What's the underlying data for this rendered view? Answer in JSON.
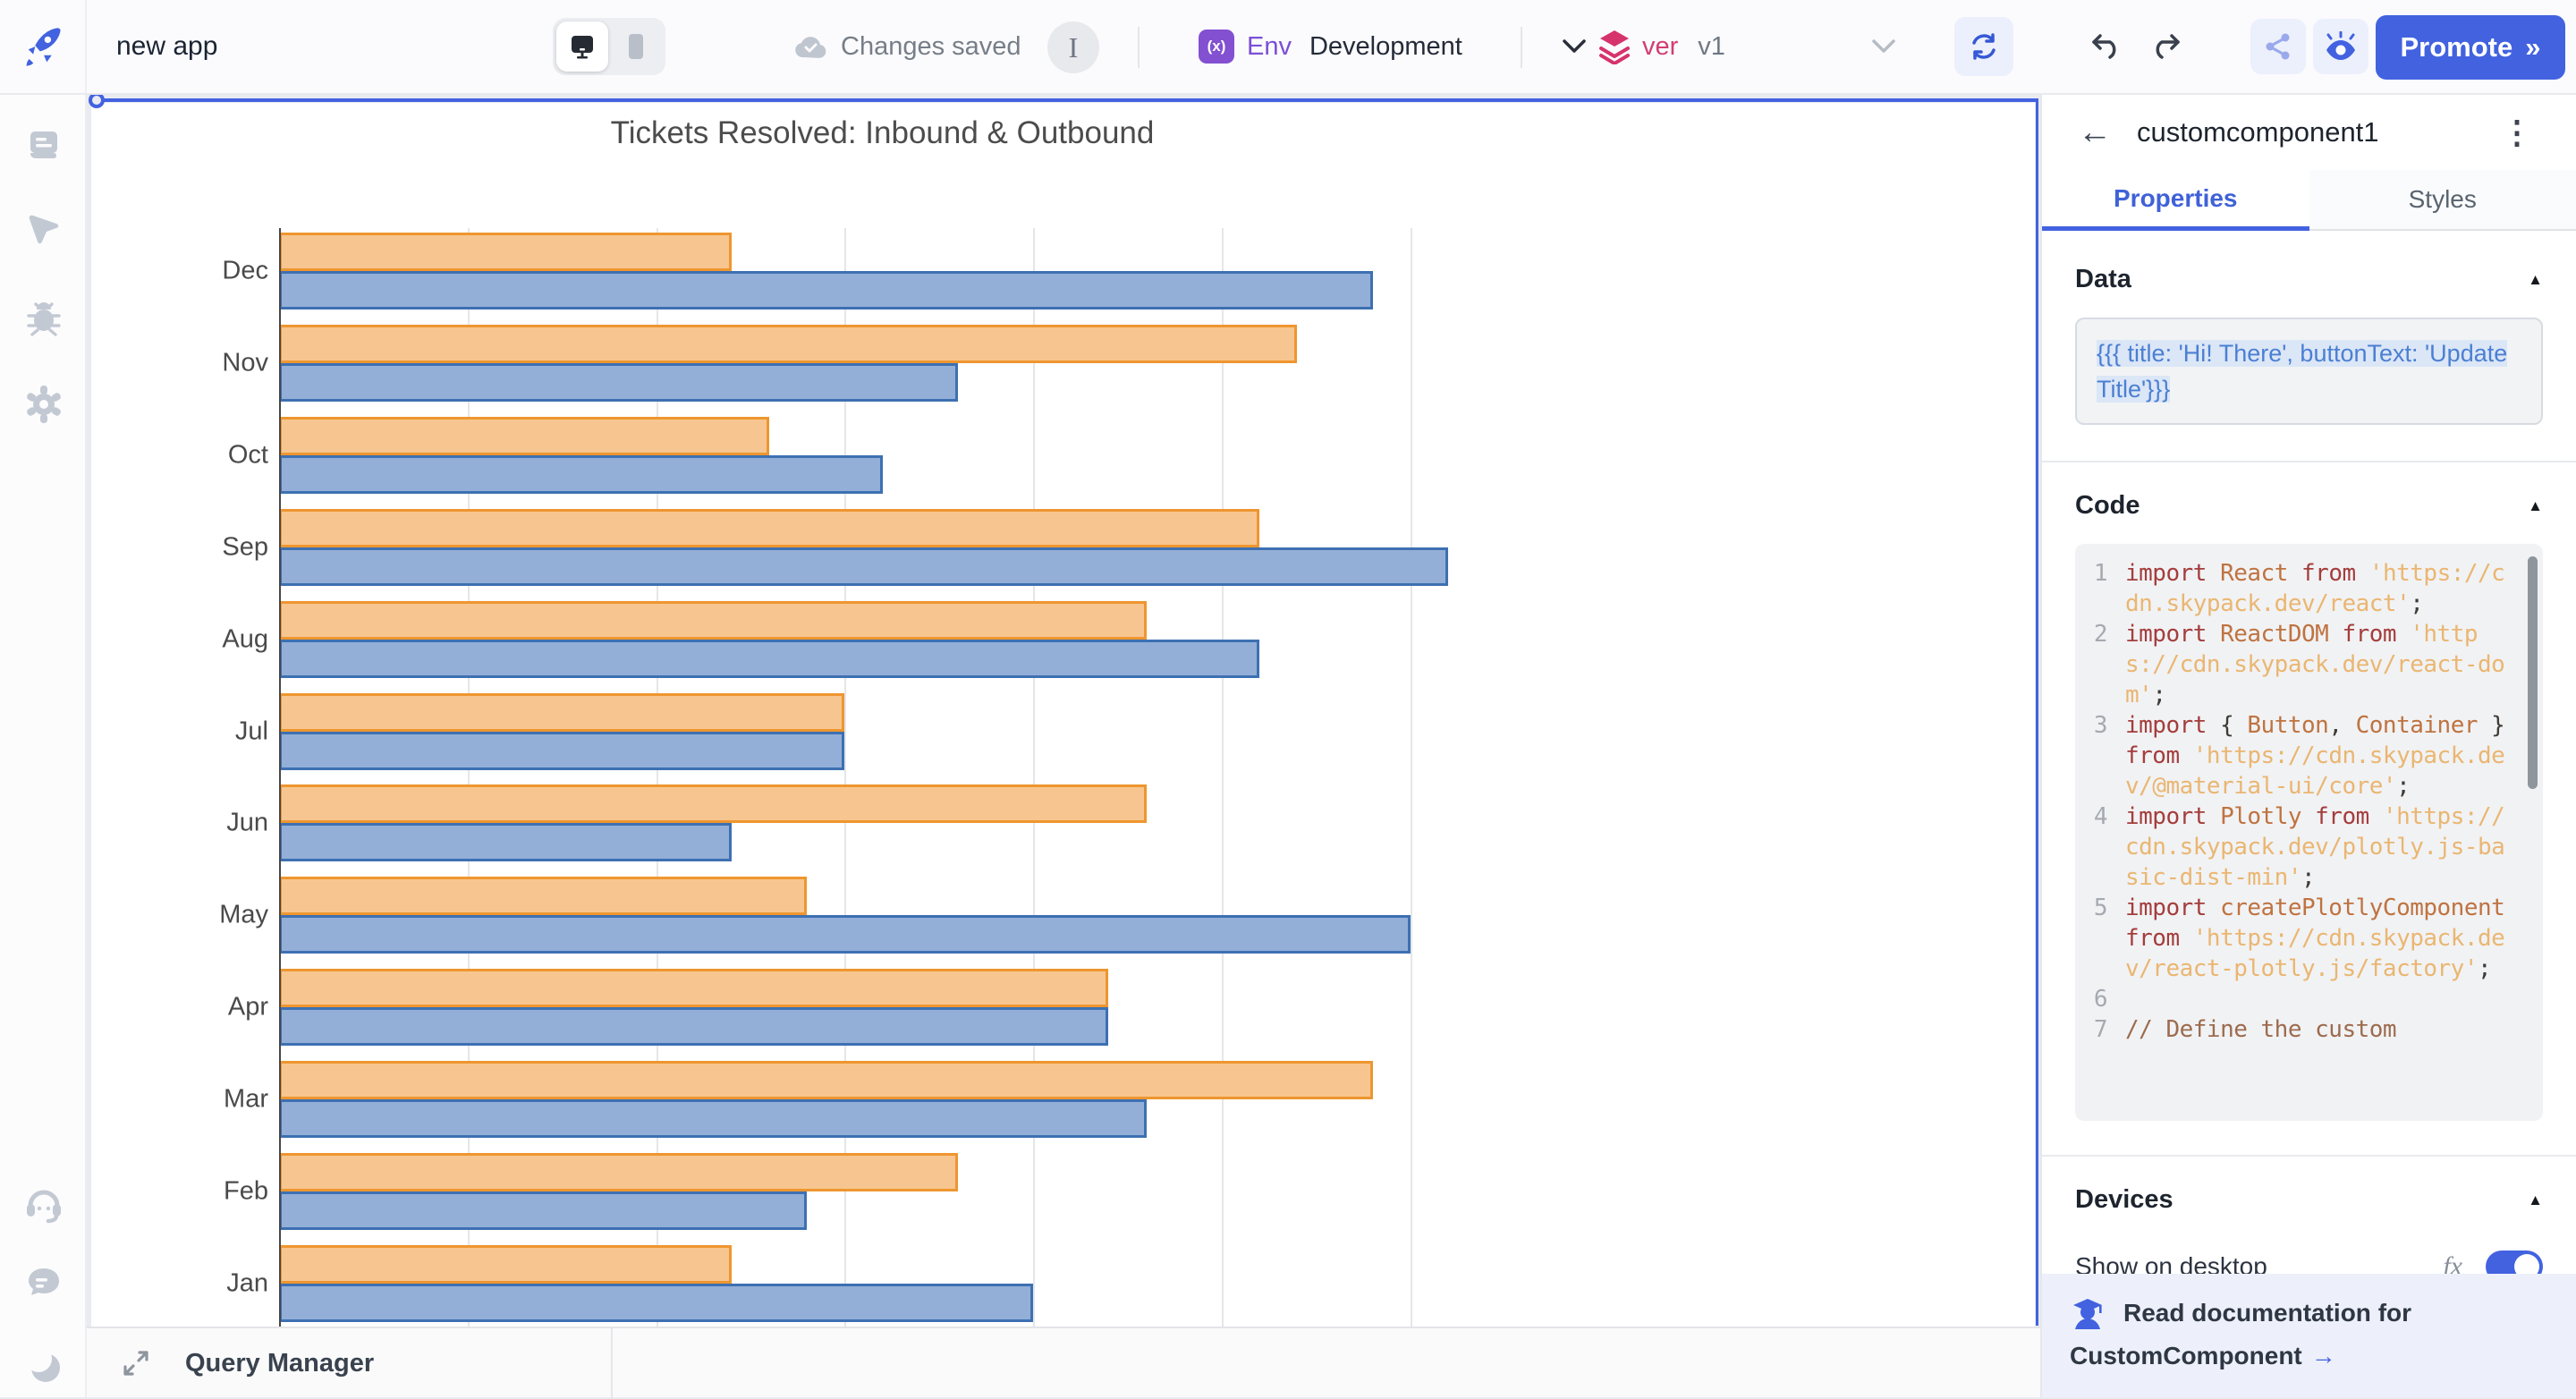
{
  "topbar": {
    "app_title": "new app",
    "changes_saved": "Changes saved",
    "instance_badge": "I",
    "env_badge": "(x)",
    "env_label": "Env",
    "env_value": "Development",
    "ver_label": "ver",
    "ver_value": "v1",
    "promote_label": "Promote",
    "promote_chevrons": "»"
  },
  "sidebar": {
    "icons": [
      "script",
      "navigator",
      "debug",
      "settings",
      "support",
      "chat",
      "dark-mode"
    ]
  },
  "chart_data": {
    "type": "bar",
    "orientation": "horizontal",
    "title": "Tickets Resolved: Inbound & Outbound",
    "categories": [
      "Dec",
      "Nov",
      "Oct",
      "Sep",
      "Aug",
      "Jul",
      "Jun",
      "May",
      "Apr",
      "Mar",
      "Feb",
      "Jan"
    ],
    "series": [
      {
        "name": "orange",
        "color": "#f7c690",
        "border": "#ee962f",
        "values": [
          48,
          108,
          52,
          104,
          92,
          60,
          92,
          56,
          88,
          116,
          72,
          48
        ]
      },
      {
        "name": "blue",
        "color": "#93afd7",
        "border": "#3d70b2",
        "values": [
          116,
          72,
          64,
          124,
          104,
          60,
          48,
          120,
          88,
          92,
          56,
          80
        ]
      }
    ],
    "xlim": [
      0,
      128
    ],
    "grid_step": 20,
    "grid": true,
    "legend_position": "none",
    "xlabel": "",
    "ylabel": ""
  },
  "bottom_bar": {
    "label": "Query Manager"
  },
  "panel": {
    "component_name": "customcomponent1",
    "tabs": [
      {
        "label": "Properties",
        "active": true
      },
      {
        "label": "Styles",
        "active": false
      }
    ],
    "data_section": {
      "title": "Data",
      "model": "{{{ title: 'Hi! There', buttonText: 'Update Title'}}}"
    },
    "code_section": {
      "title": "Code",
      "lines": [
        {
          "n": "1",
          "tokens": [
            {
              "t": "k",
              "s": "import"
            },
            {
              "t": "p",
              "s": " "
            },
            {
              "t": "i",
              "s": "React"
            },
            {
              "t": "p",
              "s": " "
            },
            {
              "t": "k",
              "s": "from"
            },
            {
              "t": "p",
              "s": " "
            },
            {
              "t": "s",
              "s": "'https://cdn.skypack.dev/react'"
            },
            {
              "t": "p",
              "s": ";"
            }
          ]
        },
        {
          "n": "2",
          "tokens": [
            {
              "t": "k",
              "s": "import"
            },
            {
              "t": "p",
              "s": " "
            },
            {
              "t": "i",
              "s": "ReactDOM"
            },
            {
              "t": "p",
              "s": " "
            },
            {
              "t": "k",
              "s": "from"
            },
            {
              "t": "p",
              "s": " "
            },
            {
              "t": "s",
              "s": "'https://cdn.skypack.dev/react-dom'"
            },
            {
              "t": "p",
              "s": ";"
            }
          ]
        },
        {
          "n": "3",
          "tokens": [
            {
              "t": "k",
              "s": "import"
            },
            {
              "t": "p",
              "s": " { "
            },
            {
              "t": "i",
              "s": "Button"
            },
            {
              "t": "p",
              "s": ", "
            },
            {
              "t": "i",
              "s": "Container"
            },
            {
              "t": "p",
              "s": " } "
            },
            {
              "t": "k",
              "s": "from"
            },
            {
              "t": "p",
              "s": " "
            },
            {
              "t": "s",
              "s": "'https://cdn.skypack.dev/@material-ui/core'"
            },
            {
              "t": "p",
              "s": ";"
            }
          ]
        },
        {
          "n": "4",
          "tokens": [
            {
              "t": "k",
              "s": "import"
            },
            {
              "t": "p",
              "s": " "
            },
            {
              "t": "i",
              "s": "Plotly"
            },
            {
              "t": "p",
              "s": " "
            },
            {
              "t": "k",
              "s": "from"
            },
            {
              "t": "p",
              "s": " "
            },
            {
              "t": "s",
              "s": "'https://cdn.skypack.dev/plotly.js-basic-dist-min'"
            },
            {
              "t": "p",
              "s": ";"
            }
          ]
        },
        {
          "n": "5",
          "tokens": [
            {
              "t": "k",
              "s": "import"
            },
            {
              "t": "p",
              "s": " "
            },
            {
              "t": "i",
              "s": "createPlotlyComponent"
            },
            {
              "t": "p",
              "s": " "
            },
            {
              "t": "k",
              "s": "from"
            },
            {
              "t": "p",
              "s": " "
            },
            {
              "t": "s",
              "s": "'https://cdn.skypack.dev/react-plotly.js/factory'"
            },
            {
              "t": "p",
              "s": ";"
            }
          ]
        },
        {
          "n": "6",
          "tokens": []
        },
        {
          "n": "7",
          "tokens": [
            {
              "t": "c",
              "s": "// Define the custom"
            }
          ]
        }
      ]
    },
    "devices_section": {
      "title": "Devices",
      "show_on_desktop_label": "Show on desktop",
      "fx_label": "fx",
      "toggle_on": true
    },
    "doc_link": {
      "line1": "Read documentation for",
      "line2": "CustomComponent",
      "arrow": "→"
    }
  },
  "colors": {
    "accent_blue": "#4262e0",
    "env_purple": "#8250d0",
    "ver_pink": "#d6336c",
    "bar_orange_fill": "#f7c690",
    "bar_orange_border": "#ee962f",
    "bar_blue_fill": "#93afd7",
    "bar_blue_border": "#3d70b2"
  }
}
